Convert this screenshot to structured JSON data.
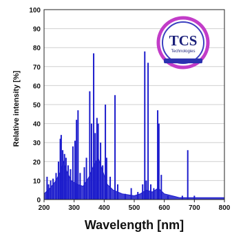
{
  "logo": {
    "name": "TCS",
    "subtitle": "Technologies"
  },
  "chart_data": {
    "type": "line",
    "xlabel": "Wavelength [nm]",
    "ylabel": "Relative intensity [%]",
    "xlim": [
      200,
      800
    ],
    "ylim": [
      0,
      100
    ],
    "x_ticks": [
      200,
      300,
      400,
      500,
      600,
      700,
      800
    ],
    "y_ticks": [
      0,
      10,
      20,
      30,
      40,
      50,
      60,
      70,
      80,
      90,
      100
    ],
    "grid": "horizontal",
    "series": [
      {
        "color": "#1c1ccc",
        "baseline": [
          [
            200,
            3
          ],
          [
            220,
            6
          ],
          [
            240,
            10
          ],
          [
            255,
            15
          ],
          [
            265,
            20
          ],
          [
            275,
            15
          ],
          [
            290,
            10
          ],
          [
            310,
            8
          ],
          [
            330,
            7
          ],
          [
            350,
            12
          ],
          [
            365,
            18
          ],
          [
            380,
            22
          ],
          [
            395,
            15
          ],
          [
            410,
            8
          ],
          [
            430,
            5
          ],
          [
            460,
            3
          ],
          [
            500,
            2
          ],
          [
            520,
            3
          ],
          [
            540,
            5
          ],
          [
            560,
            4
          ],
          [
            580,
            6
          ],
          [
            600,
            3
          ],
          [
            650,
            1
          ],
          [
            700,
            1
          ],
          [
            800,
            1
          ]
        ],
        "peaks": [
          {
            "x": 210,
            "y": 12
          },
          {
            "x": 215,
            "y": 8
          },
          {
            "x": 222,
            "y": 10
          },
          {
            "x": 230,
            "y": 11
          },
          {
            "x": 240,
            "y": 14
          },
          {
            "x": 248,
            "y": 20
          },
          {
            "x": 254,
            "y": 32
          },
          {
            "x": 257,
            "y": 34
          },
          {
            "x": 262,
            "y": 26
          },
          {
            "x": 268,
            "y": 24
          },
          {
            "x": 273,
            "y": 22
          },
          {
            "x": 280,
            "y": 18
          },
          {
            "x": 288,
            "y": 16
          },
          {
            "x": 296,
            "y": 28
          },
          {
            "x": 303,
            "y": 31
          },
          {
            "x": 308,
            "y": 42
          },
          {
            "x": 313,
            "y": 47
          },
          {
            "x": 320,
            "y": 14
          },
          {
            "x": 334,
            "y": 17
          },
          {
            "x": 341,
            "y": 22
          },
          {
            "x": 352,
            "y": 57
          },
          {
            "x": 358,
            "y": 40
          },
          {
            "x": 365,
            "y": 77
          },
          {
            "x": 370,
            "y": 35
          },
          {
            "x": 376,
            "y": 43
          },
          {
            "x": 380,
            "y": 40
          },
          {
            "x": 388,
            "y": 30
          },
          {
            "x": 395,
            "y": 18
          },
          {
            "x": 404,
            "y": 50
          },
          {
            "x": 408,
            "y": 22
          },
          {
            "x": 420,
            "y": 12
          },
          {
            "x": 436,
            "y": 55
          },
          {
            "x": 445,
            "y": 8
          },
          {
            "x": 470,
            "y": 3
          },
          {
            "x": 490,
            "y": 6
          },
          {
            "x": 512,
            "y": 4
          },
          {
            "x": 528,
            "y": 8
          },
          {
            "x": 535,
            "y": 78
          },
          {
            "x": 540,
            "y": 10
          },
          {
            "x": 546,
            "y": 72
          },
          {
            "x": 555,
            "y": 8
          },
          {
            "x": 565,
            "y": 6
          },
          {
            "x": 578,
            "y": 47
          },
          {
            "x": 582,
            "y": 40
          },
          {
            "x": 590,
            "y": 13
          },
          {
            "x": 612,
            "y": 2
          },
          {
            "x": 660,
            "y": 2
          },
          {
            "x": 678,
            "y": 26
          },
          {
            "x": 700,
            "y": 2
          }
        ]
      }
    ]
  }
}
